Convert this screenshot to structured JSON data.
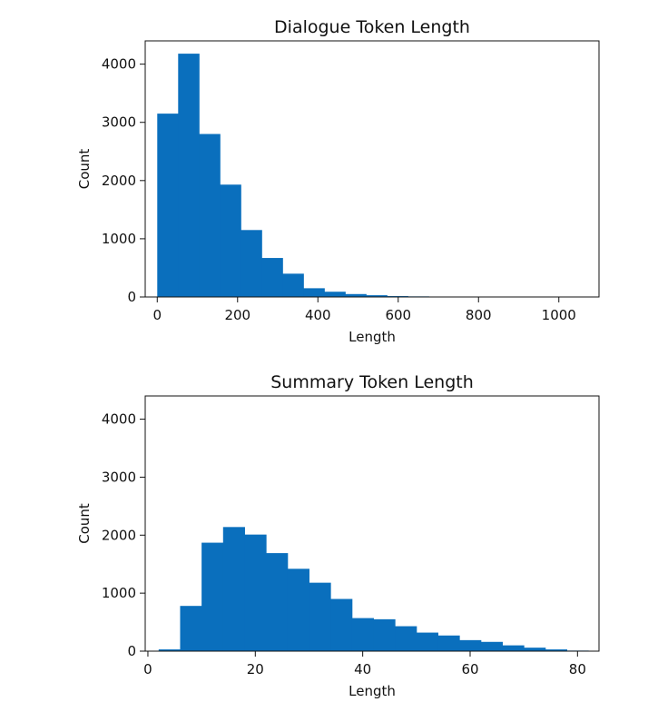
{
  "chart_data": [
    {
      "type": "bar",
      "title": "Dialogue Token Length",
      "xlabel": "Length",
      "ylabel": "Count",
      "xlim": [
        -30,
        1100
      ],
      "ylim": [
        0,
        4400
      ],
      "xticks": [
        0,
        200,
        400,
        600,
        800,
        1000
      ],
      "yticks": [
        0,
        1000,
        2000,
        3000,
        4000
      ],
      "grid": false,
      "color": "#0a6fbd",
      "bin_edges": [
        0,
        52,
        104,
        156,
        208,
        260,
        312,
        364,
        416,
        468,
        520,
        572,
        624,
        676,
        728,
        780,
        832,
        884,
        936,
        988,
        1040
      ],
      "values": [
        3150,
        4180,
        2800,
        1930,
        1150,
        670,
        400,
        150,
        90,
        50,
        30,
        15,
        10,
        5,
        5,
        3,
        3,
        2,
        2,
        1
      ]
    },
    {
      "type": "bar",
      "title": "Summary Token Length",
      "xlabel": "Length",
      "ylabel": "Count",
      "xlim": [
        -0.5,
        84
      ],
      "ylim": [
        0,
        4400
      ],
      "xticks": [
        0,
        20,
        40,
        60,
        80
      ],
      "yticks": [
        0,
        1000,
        2000,
        3000,
        4000
      ],
      "grid": false,
      "color": "#0a6fbd",
      "bin_edges": [
        2,
        6,
        10,
        14,
        18,
        22,
        26,
        30,
        34,
        38,
        42,
        46,
        50,
        54,
        58,
        62,
        66,
        70,
        74,
        78,
        82
      ],
      "values": [
        30,
        780,
        1870,
        2140,
        2010,
        1690,
        1420,
        1180,
        900,
        570,
        550,
        430,
        320,
        270,
        190,
        160,
        100,
        60,
        30,
        10
      ]
    }
  ]
}
